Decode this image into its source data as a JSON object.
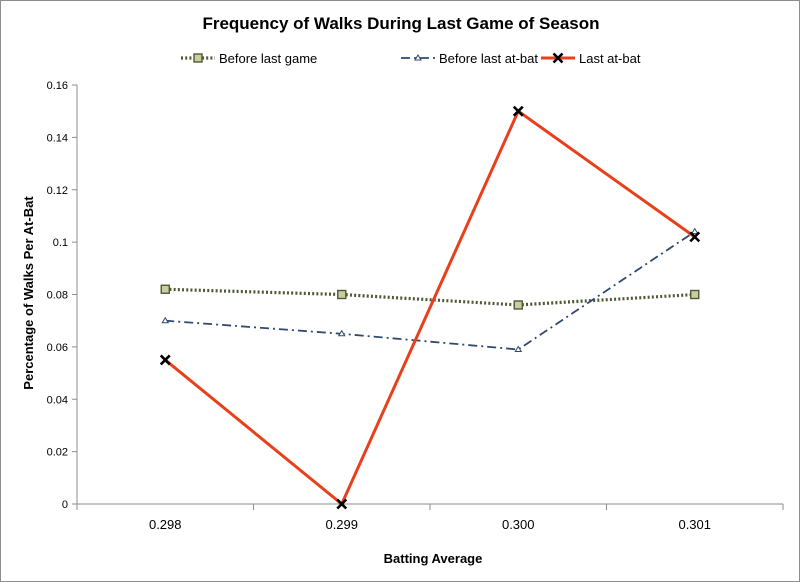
{
  "chart_data": {
    "type": "line",
    "title": "Frequency of Walks During Last Game of Season",
    "xlabel": "Batting Average",
    "ylabel": "Percentage of Walks Per At-Bat",
    "categories": [
      "0.298",
      "0.299",
      "0.300",
      "0.301"
    ],
    "ylim": [
      0,
      0.16
    ],
    "yticks": [
      "0",
      "0.02",
      "0.04",
      "0.06",
      "0.08",
      "0.1",
      "0.12",
      "0.14",
      "0.16"
    ],
    "ytick_values": [
      0,
      0.02,
      0.04,
      0.06,
      0.08,
      0.1,
      0.12,
      0.14,
      0.16
    ],
    "grid": false,
    "legend_position": "top",
    "series": [
      {
        "name": "Before last game",
        "values": [
          0.082,
          0.08,
          0.076,
          0.08
        ],
        "color": "#4f5a34",
        "style": "dotted",
        "marker": "square"
      },
      {
        "name": "Before last at-bat",
        "values": [
          0.07,
          0.065,
          0.059,
          0.104
        ],
        "color": "#2f4a6e",
        "style": "dash-dot",
        "marker": "triangle"
      },
      {
        "name": "Last at-bat",
        "values": [
          0.055,
          0.0,
          0.15,
          0.102
        ],
        "color": "#e8401c",
        "style": "solid",
        "marker": "x"
      }
    ]
  }
}
